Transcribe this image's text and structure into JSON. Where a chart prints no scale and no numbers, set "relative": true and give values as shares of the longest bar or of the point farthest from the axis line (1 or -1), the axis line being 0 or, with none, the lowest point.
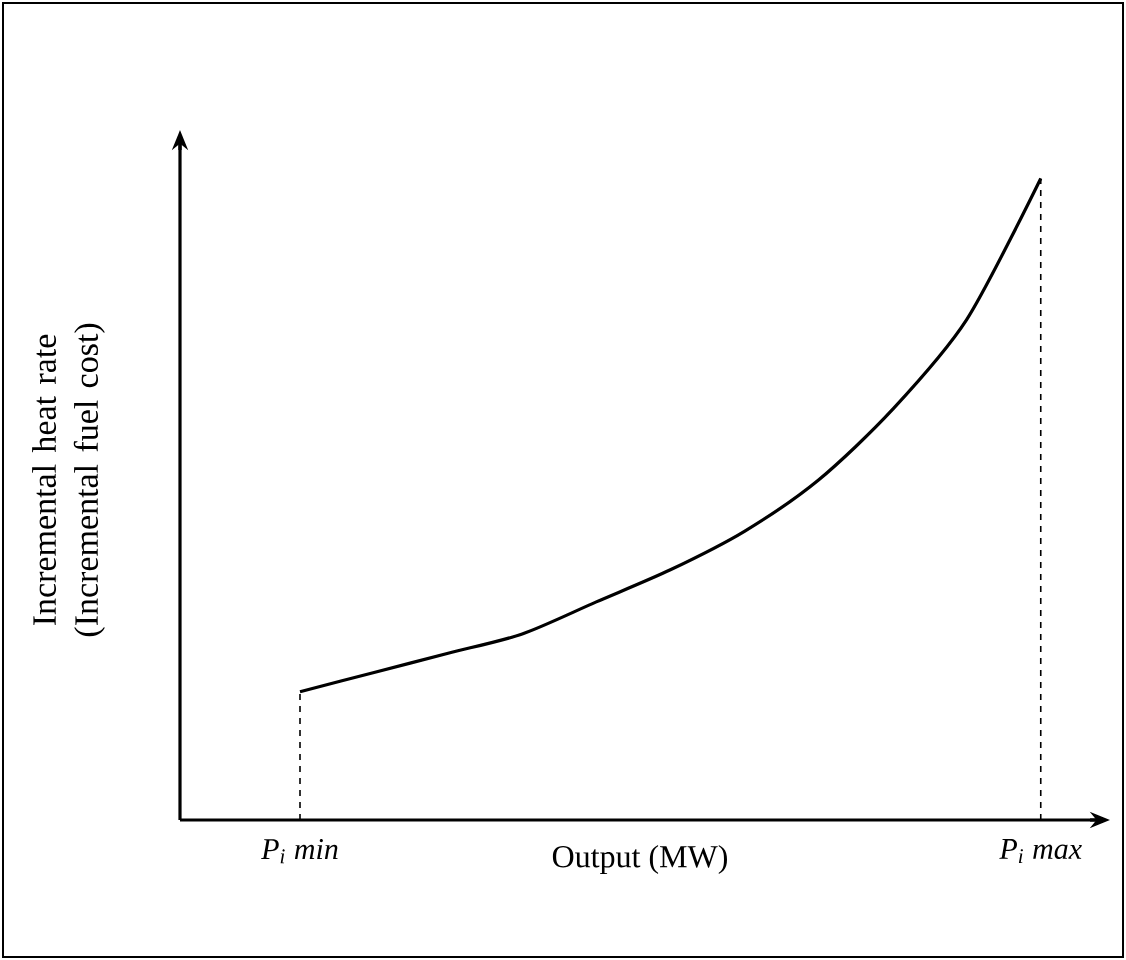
{
  "chart_data": {
    "type": "line",
    "relative": true,
    "xlabel": "Output (MW)",
    "ylabel": "Incremental heat rate (Incremental fuel cost)",
    "categories": [
      "P$_{i}$ min",
      null,
      null,
      null,
      null,
      null,
      null,
      null,
      null,
      null,
      "P$_{i}$ max"
    ],
    "series": [
      {
        "color": "#000000",
        "values": [
          0.2,
          0.23,
          0.26,
          0.29,
          0.34,
          0.39,
          0.45,
          0.53,
          0.64,
          0.78,
          1.0
        ]
      }
    ],
    "ref_lines": [
      {
        "axis": "x",
        "value": "P$_{i}$ min",
        "line_style": "dashed"
      },
      {
        "axis": "x",
        "value": "P$_{i}$ max",
        "line_style": "dashed"
      }
    ],
    "marker": "none",
    "line_style": "solid"
  }
}
